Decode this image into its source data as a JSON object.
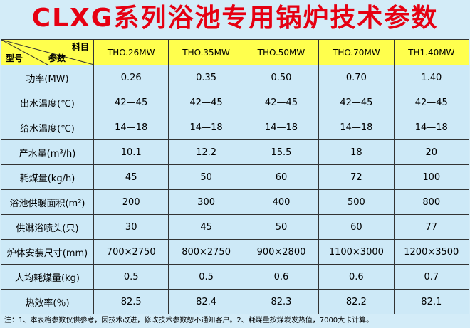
{
  "header": {
    "title": "CLXG系列浴池专用锅炉技术参数"
  },
  "table": {
    "corner": {
      "subject": "科目",
      "model": "型号",
      "param": "参数"
    },
    "columns": [
      "THO.26MW",
      "THO.35MW",
      "THO.50MW",
      "THO.70MW",
      "TH1.40MW"
    ],
    "rows": [
      [
        "功率(MW)",
        "0.26",
        "0.35",
        "0.50",
        "0.70",
        "1.40"
      ],
      [
        "出水温度(℃)",
        "42—45",
        "42—45",
        "42—45",
        "42—45",
        "42—45"
      ],
      [
        "给水温度(℃)",
        "14—18",
        "14—18",
        "14—18",
        "14—18",
        "14—18"
      ],
      [
        "产水量(m³/h)",
        "10.1",
        "12.2",
        "15.5",
        "18",
        "20"
      ],
      [
        "耗煤量(kg/h)",
        "45",
        "50",
        "60",
        "72",
        "100"
      ],
      [
        "浴池供暖面积(m²)",
        "200",
        "300",
        "400",
        "500",
        "800"
      ],
      [
        "供淋浴喷头(只)",
        "30",
        "45",
        "50",
        "60",
        "77"
      ],
      [
        "炉体安装尺寸(mm)",
        "700×2750",
        "800×2750",
        "900×2800",
        "1100×3000",
        "1200×3500"
      ],
      [
        "人均耗煤量(kg)",
        "0.5",
        "0.5",
        "0.6",
        "0.6",
        "0.7"
      ],
      [
        "热效率(％)",
        "82.5",
        "82.4",
        "82.3",
        "82.2",
        "82.1"
      ]
    ]
  },
  "footer": {
    "note": "注：1、本表格参数仅供参考，因技术改进，修改技术参数恕不通知客户。2、耗煤量按煤炭发热值，7000大卡计算。"
  }
}
